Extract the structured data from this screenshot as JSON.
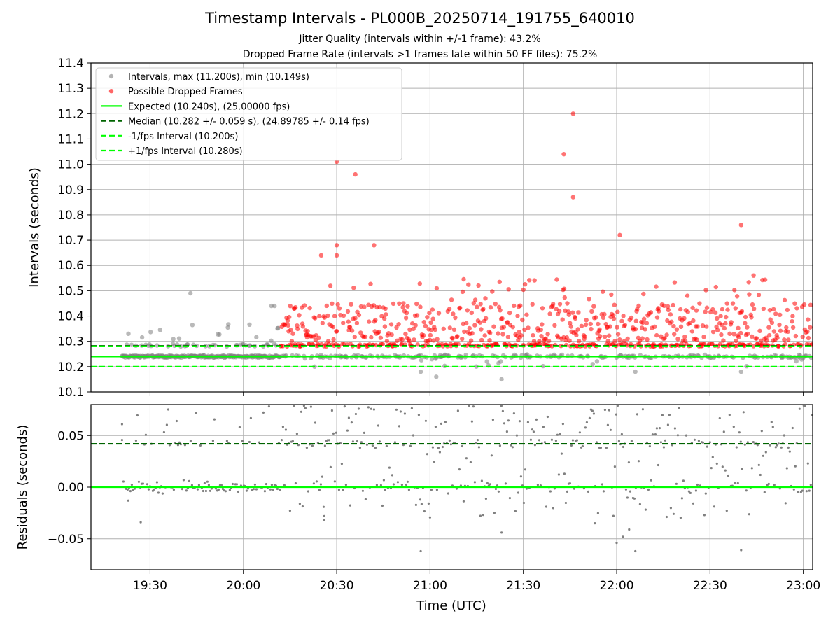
{
  "chart_data": [
    {
      "type": "scatter",
      "title": "Timestamp Intervals - PL000B_20250714_191755_640010",
      "subtitle_lines": [
        "Jitter Quality (intervals within +/-1 frame): 43.2%",
        "Dropped Frame Rate (intervals >1 frames late within 50 FF files): 75.2%"
      ],
      "xlabel": "",
      "ylabel": "Intervals (seconds)",
      "xlim": [
        "19:11",
        "23:03"
      ],
      "ylim": [
        10.1,
        11.4
      ],
      "x_ticks": [
        "19:30",
        "20:00",
        "20:30",
        "21:00",
        "21:30",
        "22:00",
        "22:30",
        "23:00"
      ],
      "y_ticks": [
        "10.1",
        "10.2",
        "10.3",
        "10.4",
        "10.5",
        "10.6",
        "10.7",
        "10.8",
        "10.9",
        "11.0",
        "11.1",
        "11.2",
        "11.3",
        "11.4"
      ],
      "grid": true,
      "legend_position": "upper-left",
      "series": [
        {
          "name": "Intervals, max (11.200s), min (10.149s)",
          "color": "#808080",
          "time_range": [
            "19:21",
            "23:03"
          ],
          "notable_points": [
            {
              "x": "19:43",
              "y": 10.49
            },
            {
              "x": "20:09",
              "y": 10.44
            },
            {
              "x": "20:10",
              "y": 10.44
            },
            {
              "x": "20:57",
              "y": 10.18
            },
            {
              "x": "21:02",
              "y": 10.16
            },
            {
              "x": "21:23",
              "y": 10.15
            },
            {
              "x": "22:06",
              "y": 10.18
            },
            {
              "x": "22:40",
              "y": 10.18
            }
          ]
        },
        {
          "name": "Possible Dropped Frames",
          "color": "#ff0000",
          "time_range": [
            "20:12",
            "23:03"
          ],
          "notable_points": [
            {
              "x": "20:30",
              "y": 11.01
            },
            {
              "x": "20:36",
              "y": 10.96
            },
            {
              "x": "20:30",
              "y": 10.68
            },
            {
              "x": "20:30",
              "y": 10.64
            },
            {
              "x": "20:25",
              "y": 10.64
            },
            {
              "x": "20:42",
              "y": 10.68
            },
            {
              "x": "21:43",
              "y": 11.04
            },
            {
              "x": "21:46",
              "y": 11.2
            },
            {
              "x": "21:46",
              "y": 10.87
            },
            {
              "x": "22:01",
              "y": 10.72
            },
            {
              "x": "22:40",
              "y": 10.76
            },
            {
              "x": "22:44",
              "y": 10.56
            }
          ]
        },
        {
          "name": "Expected (10.240s), (25.00000 fps)",
          "type": "hline",
          "y": 10.24,
          "color": "#00ff00",
          "style": "solid"
        },
        {
          "name": "Median (10.282 +/- 0.059 s), (24.89785 +/- 0.14 fps)",
          "type": "hline",
          "y": 10.282,
          "color": "#006400",
          "style": "dashed"
        },
        {
          "name": "-1/fps Interval (10.200s)",
          "type": "hline",
          "y": 10.2,
          "color": "#00ff00",
          "style": "dashed"
        },
        {
          "name": "+1/fps Interval (10.280s)",
          "type": "hline",
          "y": 10.28,
          "color": "#00ff00",
          "style": "dashed"
        }
      ]
    },
    {
      "type": "scatter",
      "xlabel": "Time (UTC)",
      "ylabel": "Residuals (seconds)",
      "xlim": [
        "19:11",
        "23:03"
      ],
      "ylim": [
        -0.08,
        0.08
      ],
      "x_ticks": [
        "19:30",
        "20:00",
        "20:30",
        "21:00",
        "21:30",
        "22:00",
        "22:30",
        "23:00"
      ],
      "y_ticks": [
        "−0.05",
        "0.00",
        "0.05"
      ],
      "grid": true,
      "series": [
        {
          "color": "#808080",
          "time_range": [
            "19:21",
            "23:03"
          ],
          "notable_points": [
            {
              "x": "19:21",
              "y": 0.061
            },
            {
              "x": "19:23",
              "y": -0.013
            },
            {
              "x": "19:27",
              "y": -0.034
            },
            {
              "x": "20:26",
              "y": -0.032
            },
            {
              "x": "20:26",
              "y": -0.028
            },
            {
              "x": "20:57",
              "y": -0.062
            },
            {
              "x": "21:23",
              "y": -0.044
            },
            {
              "x": "21:53",
              "y": -0.035
            },
            {
              "x": "22:00",
              "y": -0.054
            },
            {
              "x": "22:02",
              "y": -0.048
            },
            {
              "x": "22:04",
              "y": -0.041
            },
            {
              "x": "22:06",
              "y": -0.062
            },
            {
              "x": "22:40",
              "y": -0.061
            }
          ]
        },
        {
          "type": "hline",
          "y": 0.0,
          "color": "#00ff00",
          "style": "solid"
        },
        {
          "type": "hline",
          "y": 0.042,
          "color": "#006400",
          "style": "dashed"
        }
      ]
    }
  ]
}
